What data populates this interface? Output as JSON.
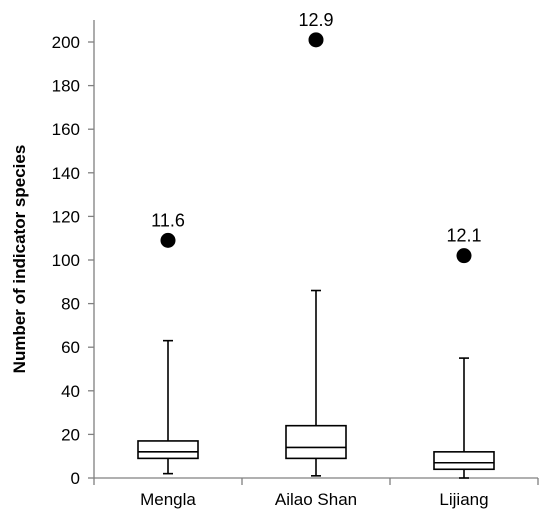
{
  "chart_data": {
    "type": "box",
    "title": "",
    "xlabel": "",
    "ylabel": "Number of indicator species",
    "ylim": [
      0,
      210
    ],
    "yticks": [
      0,
      20,
      40,
      60,
      80,
      100,
      120,
      140,
      160,
      180,
      200
    ],
    "categories": [
      "Mengla",
      "Ailao Shan",
      "Lijiang"
    ],
    "boxes": [
      {
        "category": "Mengla",
        "min": 2,
        "q1": 9,
        "median": 12,
        "q3": 17,
        "max": 63,
        "outlier": {
          "value": 109,
          "label": "11.6"
        }
      },
      {
        "category": "Ailao Shan",
        "min": 1,
        "q1": 9,
        "median": 14,
        "q3": 24,
        "max": 86,
        "outlier": {
          "value": 201,
          "label": "12.9"
        }
      },
      {
        "category": "Lijiang",
        "min": 0,
        "q1": 4,
        "median": 7,
        "q3": 12,
        "max": 55,
        "outlier": {
          "value": 102,
          "label": "12.1"
        }
      }
    ],
    "grid": false,
    "colors": {
      "axis": "#808080",
      "box": "#000000",
      "outlier": "#000000"
    }
  }
}
